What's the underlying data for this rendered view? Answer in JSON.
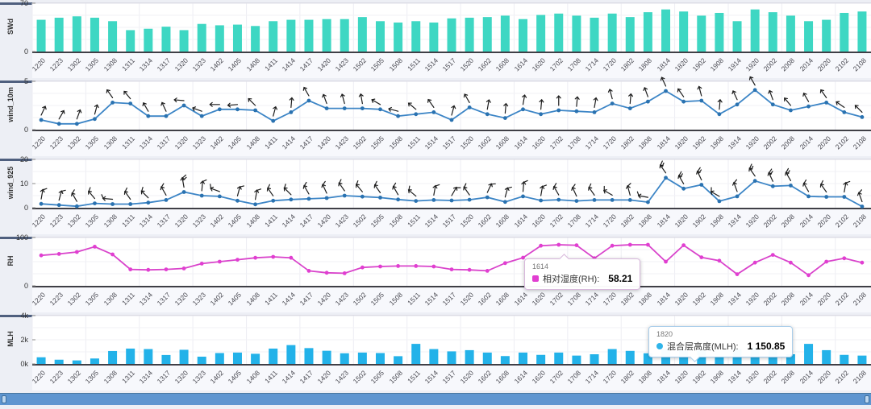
{
  "chart_data": {
    "categories": [
      "1220",
      "1223",
      "1302",
      "1305",
      "1308",
      "1311",
      "1314",
      "1317",
      "1320",
      "1323",
      "1402",
      "1405",
      "1408",
      "1411",
      "1414",
      "1417",
      "1420",
      "1423",
      "1502",
      "1505",
      "1508",
      "1511",
      "1514",
      "1517",
      "1520",
      "1602",
      "1608",
      "1614",
      "1620",
      "1702",
      "1708",
      "1714",
      "1720",
      "1802",
      "1808",
      "1814",
      "1820",
      "1902",
      "1908",
      "1914",
      "1920",
      "2002",
      "2008",
      "2014",
      "2020",
      "2102",
      "2108"
    ],
    "charts": [
      {
        "id": "swd",
        "type": "bar",
        "title": "SWd",
        "color": "#3ed7c3",
        "ylim": [
          0,
          70
        ],
        "yticks": [
          {
            "label": "70",
            "v": 70
          },
          {
            "label": "0",
            "v": 0
          }
        ],
        "values": [
          46,
          49,
          51,
          49,
          44,
          31,
          33,
          36,
          31,
          40,
          38,
          39,
          37,
          44,
          46,
          46,
          47,
          47,
          50,
          44,
          42,
          44,
          42,
          48,
          49,
          50,
          52,
          47,
          53,
          55,
          52,
          49,
          55,
          50,
          57,
          61,
          58,
          52,
          56,
          44,
          61,
          57,
          52,
          44,
          46,
          56,
          58
        ]
      },
      {
        "id": "wind_10m",
        "type": "line",
        "title": "wind_10m",
        "color": "#3c85c6",
        "marker_color": "#2a72b0",
        "glyph": "arrow",
        "ylim": [
          0,
          5
        ],
        "yticks": [
          {
            "label": "5",
            "v": 5
          },
          {
            "label": "0",
            "v": 0
          }
        ],
        "values": [
          1.0,
          0.6,
          0.6,
          1.1,
          2.8,
          2.7,
          1.4,
          1.4,
          2.5,
          1.4,
          2.1,
          2.1,
          2.0,
          0.9,
          1.8,
          3.0,
          2.2,
          2.2,
          2.2,
          2.1,
          1.4,
          1.6,
          1.8,
          1.0,
          2.3,
          1.6,
          1.2,
          2.1,
          1.6,
          2.0,
          1.9,
          1.8,
          2.7,
          2.2,
          2.9,
          4.0,
          2.9,
          3.0,
          1.6,
          2.6,
          4.1,
          2.6,
          2.0,
          2.4,
          2.8,
          1.8,
          1.3
        ],
        "wind_dir_deg": [
          25,
          30,
          20,
          15,
          -35,
          -40,
          -30,
          -25,
          -85,
          -70,
          -90,
          -95,
          -45,
          15,
          5,
          -30,
          -20,
          -15,
          -10,
          -60,
          -75,
          -50,
          -35,
          15,
          -30,
          10,
          5,
          10,
          5,
          0,
          5,
          10,
          -15,
          5,
          -20,
          -25,
          -35,
          -15,
          5,
          -25,
          -30,
          -20,
          -40,
          -30,
          -35,
          -55,
          -45
        ]
      },
      {
        "id": "wind_925",
        "type": "line",
        "title": "wind_925",
        "color": "#3c85c6",
        "marker_color": "#2a72b0",
        "glyph": "barb",
        "ylim": [
          0,
          20
        ],
        "yticks": [
          {
            "label": "20",
            "v": 20
          },
          {
            "label": "10",
            "v": 10
          },
          {
            "label": "0",
            "v": 0
          }
        ],
        "values": [
          1.6,
          1.1,
          0.6,
          1.8,
          1.5,
          1.5,
          2.1,
          3.2,
          6.5,
          5.0,
          4.7,
          2.9,
          1.4,
          2.9,
          3.4,
          3.7,
          4.0,
          5.0,
          4.6,
          4.2,
          3.4,
          2.8,
          3.2,
          3.0,
          3.3,
          4.3,
          2.4,
          4.7,
          3.0,
          3.3,
          2.8,
          3.2,
          3.2,
          3.2,
          2.3,
          12.4,
          7.9,
          9.5,
          2.7,
          4.7,
          11.1,
          8.9,
          9.2,
          4.7,
          4.5,
          4.5,
          0.5
        ],
        "wind_dir_deg": [
          10,
          15,
          -30,
          -40,
          -85,
          -35,
          -45,
          -30,
          -10,
          5,
          -70,
          15,
          10,
          -35,
          -45,
          -30,
          -25,
          -35,
          -40,
          -35,
          -30,
          -50,
          10,
          30,
          -35,
          25,
          15,
          5,
          10,
          -30,
          -25,
          -35,
          -60,
          -15,
          -80,
          -35,
          -30,
          -25,
          -60,
          -20,
          -35,
          -25,
          -30,
          -30,
          -35,
          10,
          -20
        ]
      },
      {
        "id": "rh",
        "type": "line",
        "title": "RH",
        "color": "#d943cb",
        "marker_color": "#e13ed1",
        "ylim": [
          0,
          100
        ],
        "yticks": [
          {
            "label": "100",
            "v": 100
          },
          {
            "label": "0",
            "v": 0
          }
        ],
        "values": [
          63,
          66,
          70,
          81,
          65,
          34,
          33,
          34,
          36,
          46,
          50,
          54,
          58,
          60,
          58,
          31,
          27,
          26,
          38,
          40,
          41,
          41,
          40,
          34,
          33,
          31,
          47,
          58.21,
          83,
          85,
          84,
          57,
          83,
          85,
          85,
          50,
          84,
          59,
          52,
          24,
          48,
          64,
          48,
          22,
          50,
          57,
          48
        ]
      },
      {
        "id": "mlh",
        "type": "bar",
        "title": "MLH",
        "color": "#23b2e9",
        "ylim": [
          0,
          4000
        ],
        "yticks": [
          {
            "label": "4k",
            "v": 4000
          },
          {
            "label": "2k",
            "v": 2000
          },
          {
            "label": "0k",
            "v": 0
          }
        ],
        "values": [
          550,
          350,
          290,
          450,
          1070,
          1270,
          1230,
          740,
          1170,
          600,
          900,
          940,
          840,
          1270,
          1560,
          1310,
          1090,
          880,
          940,
          900,
          640,
          1660,
          1230,
          1040,
          1140,
          940,
          650,
          940,
          750,
          940,
          690,
          800,
          1230,
          1080,
          880,
          1270,
          1150.85,
          1140,
          650,
          1230,
          1330,
          1200,
          800,
          1660,
          1140,
          750,
          690
        ]
      }
    ]
  },
  "tooltips": [
    {
      "category": "1614",
      "series_label": "相对湿度(RH):",
      "value": "58.21",
      "marker_color": "#e13ed1",
      "marker_shape": "square"
    },
    {
      "category": "1820",
      "series_label": "混合层高度(MLH):",
      "value": "1 150.85",
      "marker_color": "#2fb4e9",
      "marker_shape": "circle"
    }
  ]
}
